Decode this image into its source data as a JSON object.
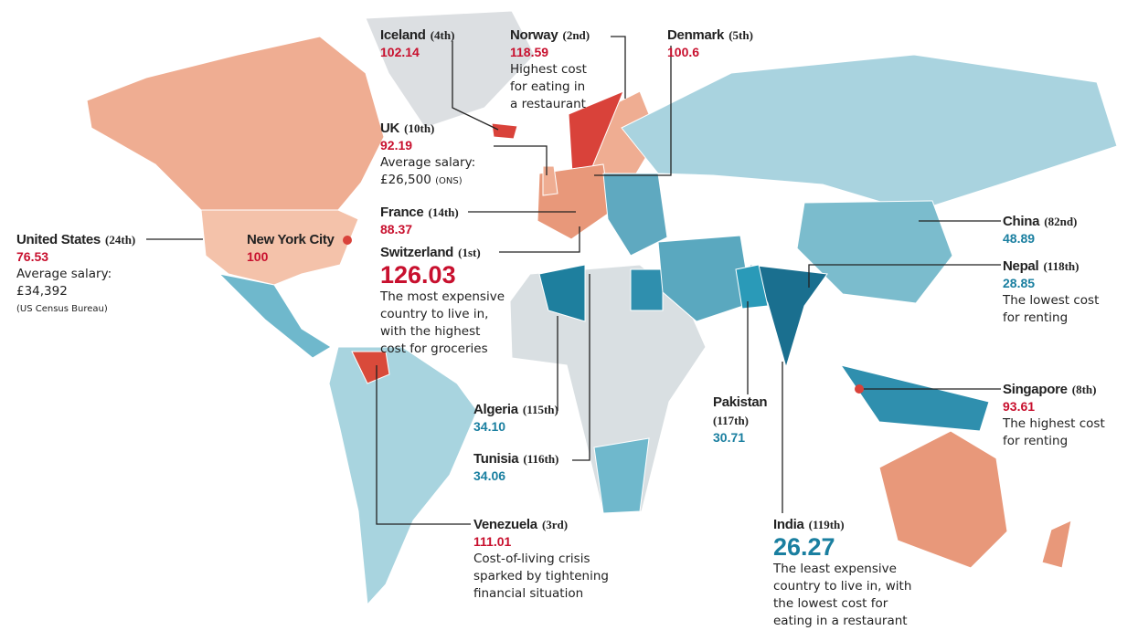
{
  "labels": [
    {
      "name": "Iceland",
      "rank": "(4th)",
      "value": "102.14",
      "color": "#c8102e"
    },
    {
      "name": "Norway",
      "rank": "(2nd)",
      "value": "118.59",
      "color": "#c8102e",
      "note": [
        "Highest cost",
        "for eating in",
        "a restaurant"
      ]
    },
    {
      "name": "Denmark",
      "rank": "(5th)",
      "value": "100.6",
      "color": "#c8102e"
    },
    {
      "name": "UK",
      "rank": "(10th)",
      "value": "92.19",
      "color": "#c8102e",
      "note": [
        "Average salary:",
        "£26,500"
      ],
      "source": "(ONS)"
    },
    {
      "name": "France",
      "rank": "(14th)",
      "value": "88.37",
      "color": "#c8102e"
    },
    {
      "name": "United States",
      "rank": "(24th)",
      "value": "76.53",
      "color": "#c8102e",
      "note": [
        "Average salary:",
        "£34,392"
      ],
      "source": "(US Census Bureau)"
    },
    {
      "name": "New York City",
      "value": "100",
      "color": "#c8102e"
    },
    {
      "name": "Switzerland",
      "rank": "(1st)",
      "value": "126.03",
      "color": "#c8102e",
      "big": true,
      "note": [
        "The most expensive",
        "country to live in,",
        "with the highest",
        "cost for groceries"
      ]
    },
    {
      "name": "China",
      "rank": "(82nd)",
      "value": "48.89",
      "color": "#1a7fa0"
    },
    {
      "name": "Nepal",
      "rank": "(118th)",
      "value": "28.85",
      "color": "#1a7fa0",
      "note": [
        "The lowest cost",
        "for renting"
      ]
    },
    {
      "name": "Algeria",
      "rank": "(115th)",
      "value": "34.10",
      "color": "#1a7fa0"
    },
    {
      "name": "Tunisia",
      "rank": "(116th)",
      "value": "34.06",
      "color": "#1a7fa0"
    },
    {
      "name": "Pakistan",
      "rank": "(117th)",
      "value": "30.71",
      "color": "#1a7fa0",
      "rank_below": true
    },
    {
      "name": "Singapore",
      "rank": "(8th)",
      "value": "93.61",
      "color": "#c8102e",
      "note": [
        "The highest cost",
        "for renting"
      ]
    },
    {
      "name": "Venezuela",
      "rank": "(3rd)",
      "value": "111.01",
      "color": "#c8102e",
      "note": [
        "Cost-of-living crisis",
        "sparked by tightening",
        "financial situation"
      ]
    },
    {
      "name": "India",
      "rank": "(119th)",
      "value": "26.27",
      "color": "#1a7fa0",
      "big": true,
      "note": [
        "The least expensive",
        "country to live in, with",
        "the lowest cost for",
        "eating in a restaurant"
      ]
    }
  ]
}
